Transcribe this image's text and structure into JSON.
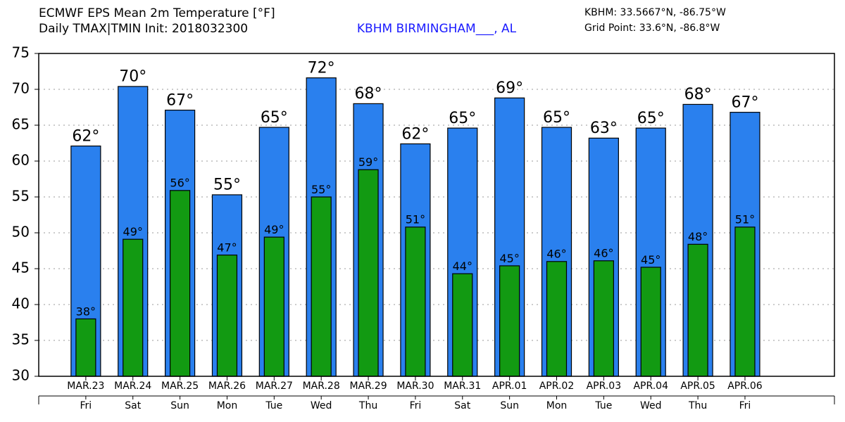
{
  "chart_data": {
    "type": "bar",
    "title": "ECMWF EPS Mean 2m Temperature [°F]",
    "subtitle": "Daily TMAX|TMIN Init: 2018032300",
    "station": "KBHM BIRMINGHAM___, AL",
    "station_coords": "KBHM: 33.5667°N, -86.75°W",
    "grid_point": "Grid Point: 33.6°N, -86.8°W",
    "categories": [
      "MAR.23",
      "MAR.24",
      "MAR.25",
      "MAR.26",
      "MAR.27",
      "MAR.28",
      "MAR.29",
      "MAR.30",
      "MAR.31",
      "APR.01",
      "APR.02",
      "APR.03",
      "APR.04",
      "APR.05",
      "APR.06"
    ],
    "weekdays": [
      "Fri",
      "Sat",
      "Sun",
      "Mon",
      "Tue",
      "Wed",
      "Thu",
      "Fri",
      "Sat",
      "Sun",
      "Mon",
      "Tue",
      "Wed",
      "Thu",
      "Fri"
    ],
    "series": [
      {
        "color": "#2a80ee",
        "values": [
          62.1,
          70.4,
          67.1,
          55.3,
          64.7,
          71.6,
          68.0,
          62.4,
          64.6,
          68.8,
          64.7,
          63.2,
          64.6,
          67.9,
          66.8
        ],
        "value_labels": [
          "62°",
          "70°",
          "67°",
          "55°",
          "65°",
          "72°",
          "68°",
          "62°",
          "65°",
          "69°",
          "65°",
          "63°",
          "65°",
          "68°",
          "67°"
        ]
      },
      {
        "color": "#129a12",
        "values": [
          38.0,
          49.1,
          55.9,
          46.9,
          49.4,
          55.0,
          58.8,
          50.8,
          44.3,
          45.4,
          46.0,
          46.1,
          45.2,
          48.4,
          50.8
        ],
        "value_labels": [
          "38°",
          "49°",
          "56°",
          "47°",
          "49°",
          "55°",
          "59°",
          "51°",
          "44°",
          "45°",
          "46°",
          "46°",
          "45°",
          "48°",
          "51°"
        ]
      }
    ],
    "ylim": [
      30,
      75
    ],
    "yticks": [
      30,
      35,
      40,
      45,
      50,
      55,
      60,
      65,
      70,
      75
    ],
    "grid": true
  }
}
